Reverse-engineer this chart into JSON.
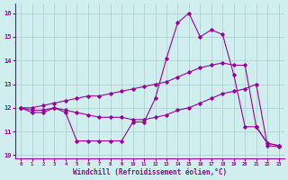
{
  "x": [
    0,
    1,
    2,
    3,
    4,
    5,
    6,
    7,
    8,
    9,
    10,
    11,
    12,
    13,
    14,
    15,
    16,
    17,
    18,
    19,
    20,
    21,
    22,
    23
  ],
  "line_spike": [
    12.0,
    11.8,
    11.8,
    12.0,
    11.8,
    10.6,
    10.6,
    10.6,
    10.6,
    10.6,
    11.4,
    11.4,
    12.4,
    14.1,
    15.6,
    16.0,
    15.0,
    15.3,
    15.1,
    13.4,
    11.2,
    11.2,
    10.5,
    10.4
  ],
  "line_upper": [
    12.0,
    12.0,
    12.1,
    12.2,
    12.3,
    12.4,
    12.5,
    12.5,
    12.6,
    12.7,
    12.8,
    12.9,
    13.0,
    13.1,
    13.3,
    13.5,
    13.7,
    13.8,
    13.9,
    13.8,
    13.8,
    11.2,
    10.5,
    10.4
  ],
  "line_lower": [
    12.0,
    11.9,
    11.9,
    12.0,
    11.9,
    11.8,
    11.7,
    11.6,
    11.6,
    11.6,
    11.5,
    11.5,
    11.6,
    11.7,
    11.9,
    12.0,
    12.2,
    12.4,
    12.6,
    12.7,
    12.8,
    13.0,
    10.4,
    10.35
  ],
  "color": "#990099",
  "bg_color": "#d0eeee",
  "grid_color": "#aacccc",
  "xlabel": "Windchill (Refroidissement éolien,°C)",
  "yticks": [
    10,
    11,
    12,
    13,
    14,
    15,
    16
  ],
  "xticks": [
    0,
    1,
    2,
    3,
    4,
    5,
    6,
    7,
    8,
    9,
    10,
    11,
    12,
    13,
    14,
    15,
    16,
    17,
    18,
    19,
    20,
    21,
    22,
    23
  ],
  "ylim": [
    9.85,
    16.4
  ],
  "xlim": [
    -0.5,
    23.5
  ]
}
